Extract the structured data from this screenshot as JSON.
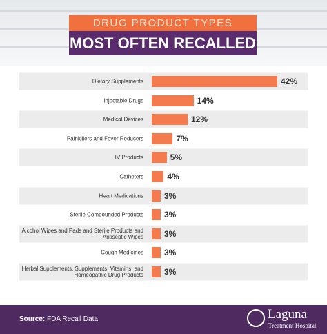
{
  "chart_data": {
    "type": "hbar",
    "title": "DRUG PRODUCT TYPES",
    "subtitle": "MOST OFTEN RECALLED",
    "categories": [
      "Dietary Supplements",
      "Injectable Drugs",
      "Medical Devices",
      "Painkillers and Fever Reducers",
      "IV Products",
      "Catheters",
      "Heart Medications",
      "Sterile Compounded Products",
      "Alcohol Wipes and Pads and Sterile Products and Antiseptic Wipes",
      "Cough Medicines",
      "Herbal Supplements, Supplements, Vitamins, and Homeopathic Drug Products"
    ],
    "values": [
      42,
      14,
      12,
      7,
      5,
      4,
      3,
      3,
      3,
      3,
      3
    ],
    "value_labels": [
      "42%",
      "14%",
      "12%",
      "7%",
      "5%",
      "4%",
      "3%",
      "3%",
      "3%",
      "3%",
      "3%"
    ],
    "color": "#f47b4d",
    "source_label": "Source:",
    "source": "FDA Recall Data",
    "brand": "Laguna",
    "brand_tagline": "Treatment Hospital"
  }
}
